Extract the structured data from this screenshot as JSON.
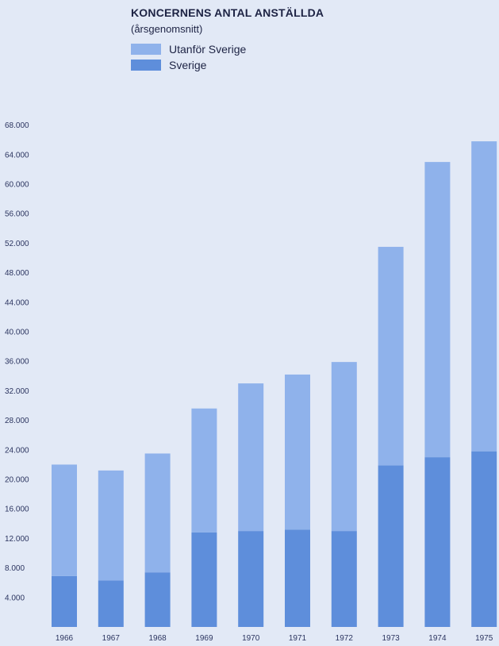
{
  "chart_data": {
    "type": "bar",
    "stacked": true,
    "title": "KONCERNENS ANTAL ANSTÄLLDA",
    "subtitle": "(årsgenomsnitt)",
    "categories": [
      "1966",
      "1967",
      "1968",
      "1969",
      "1970",
      "1971",
      "1972",
      "1973",
      "1974",
      "1975"
    ],
    "series": [
      {
        "name": "Sverige",
        "color": "#5e8edb",
        "values": [
          6900,
          6300,
          7400,
          12800,
          13000,
          13200,
          13000,
          21900,
          23000,
          23800
        ]
      },
      {
        "name": "Utanför Sverige",
        "color": "#8fb2eb",
        "values": [
          15100,
          14900,
          16100,
          16800,
          20000,
          21000,
          22900,
          29600,
          40000,
          42000
        ]
      }
    ],
    "yticks": [
      "4.000",
      "8.000",
      "12.000",
      "16.000",
      "20.000",
      "24.000",
      "28.000",
      "32.000",
      "36.000",
      "40.000",
      "44.000",
      "48.000",
      "52.000",
      "56.000",
      "60.000",
      "64.000",
      "68.000"
    ],
    "ylim": [
      0,
      70000
    ],
    "legend": [
      {
        "label": "Utanför Sverige",
        "color": "#8fb2eb"
      },
      {
        "label": "Sverige",
        "color": "#5e8edb"
      }
    ]
  }
}
